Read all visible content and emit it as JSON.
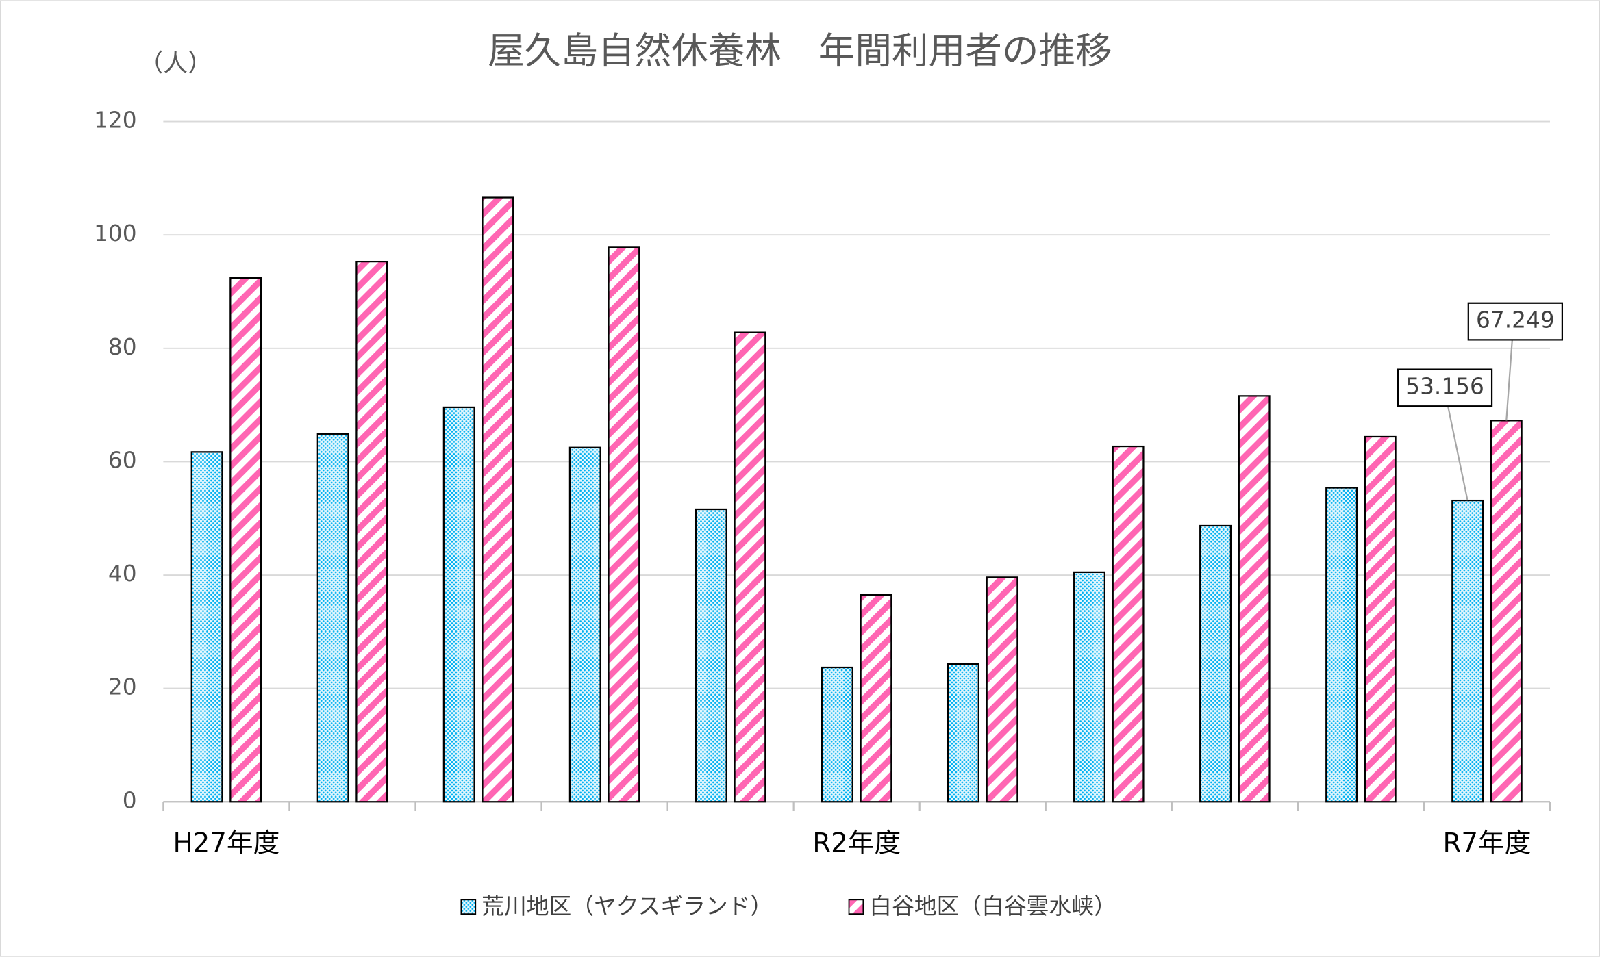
{
  "chart_data": {
    "type": "bar",
    "title": "屋久島自然休養林　年間利用者の推移",
    "y_axis_label": "（人）",
    "categories": [
      "H27年度",
      null,
      null,
      null,
      null,
      "R2年度",
      null,
      null,
      null,
      null,
      "R7年度"
    ],
    "series": [
      {
        "name": "荒川地区（ヤクスギランド）",
        "color": "#00b0f0",
        "values": [
          61.7,
          64.9,
          69.6,
          62.5,
          51.6,
          23.7,
          24.3,
          40.5,
          48.7,
          55.4,
          53.156
        ],
        "value_labels": [
          null,
          null,
          null,
          null,
          null,
          null,
          null,
          null,
          null,
          null,
          "53.156"
        ]
      },
      {
        "name": "白谷地区（白谷雲水峡）",
        "color": "#ff66b3",
        "values": [
          92.4,
          95.3,
          106.6,
          97.8,
          82.8,
          36.5,
          39.6,
          62.7,
          71.6,
          64.4,
          67.249
        ],
        "value_labels": [
          null,
          null,
          null,
          null,
          null,
          null,
          null,
          null,
          null,
          null,
          "67.249"
        ]
      }
    ],
    "ylim": [
      0,
      120
    ],
    "yticks": [
      0,
      20,
      40,
      60,
      80,
      100,
      120
    ],
    "grid": true,
    "legend": "bottom"
  }
}
